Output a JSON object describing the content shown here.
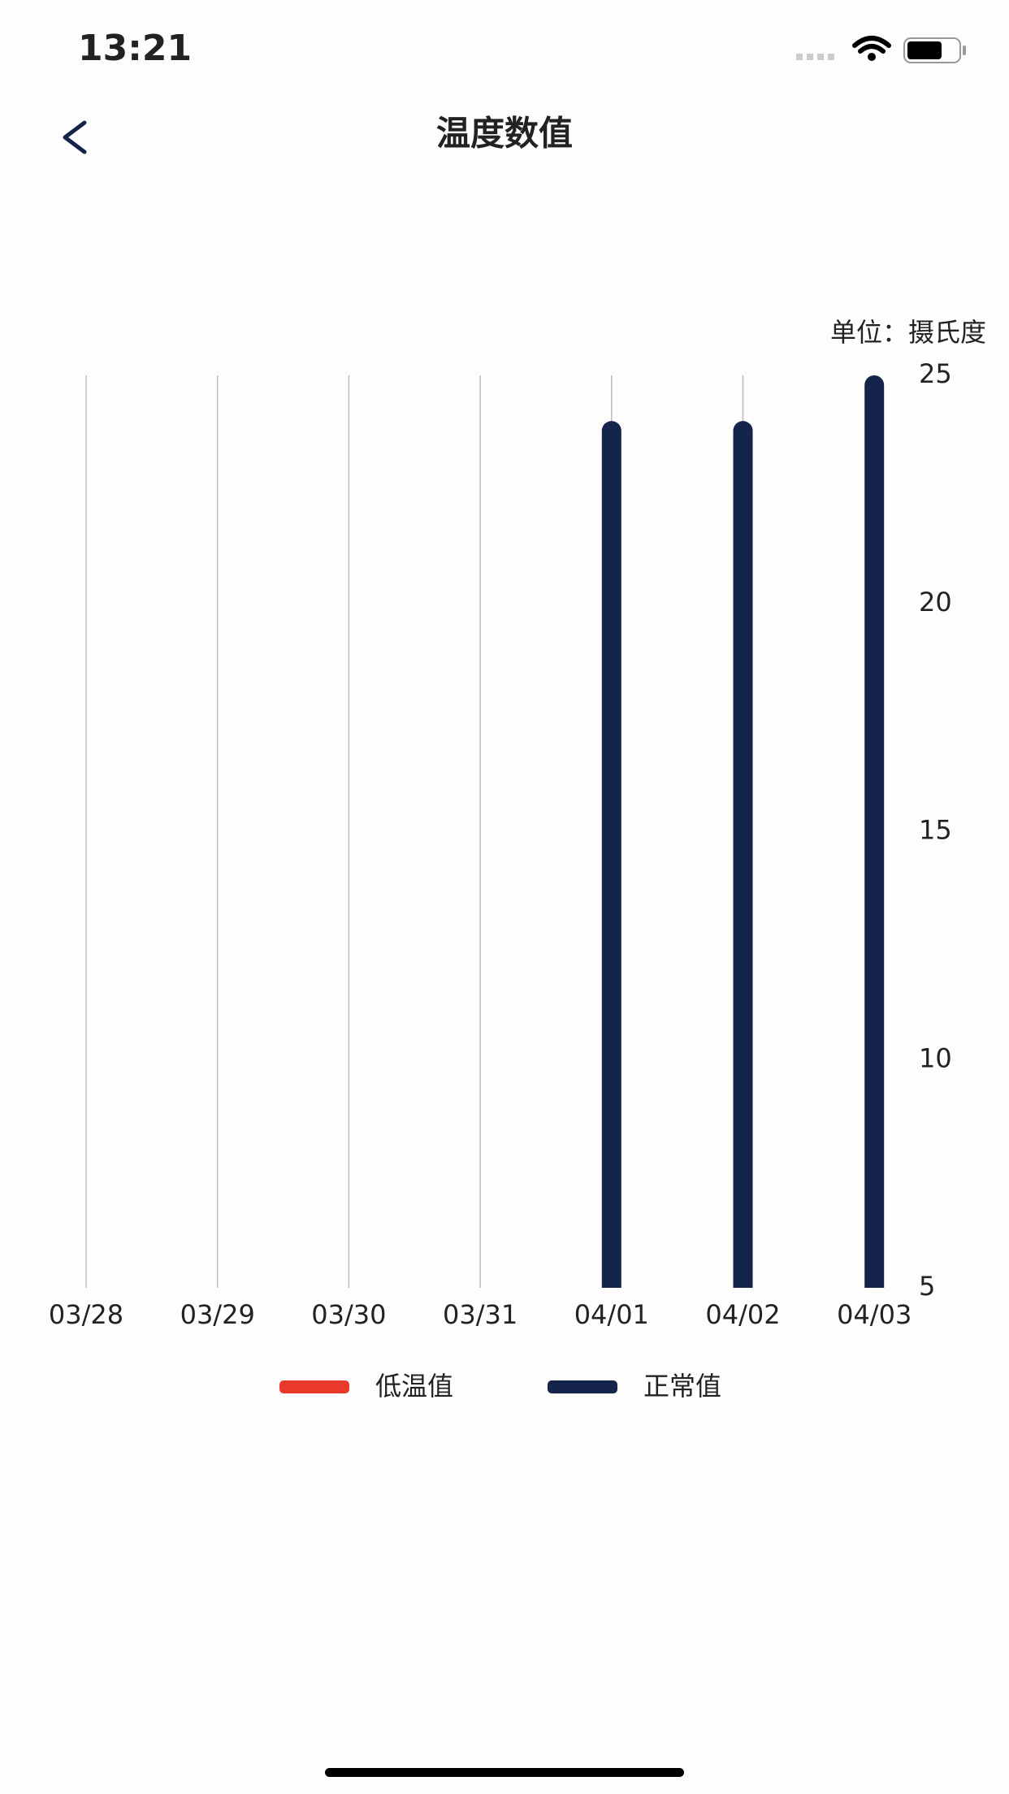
{
  "status_bar": {
    "time": "13:21"
  },
  "header": {
    "title": "温度数值"
  },
  "chart_data": {
    "type": "bar",
    "y_label": "单位：摄氏度",
    "categories": [
      "03/28",
      "03/29",
      "03/30",
      "03/31",
      "04/01",
      "04/02",
      "04/03"
    ],
    "series": [
      {
        "name": "低温值",
        "color": "#e8392b",
        "values": [
          null,
          null,
          null,
          null,
          null,
          null,
          null
        ]
      },
      {
        "name": "正常值",
        "color": "#14244b",
        "values": [
          null,
          null,
          null,
          null,
          24,
          24,
          25
        ]
      }
    ],
    "ylim": [
      5,
      25
    ],
    "yticks": [
      5,
      10,
      15,
      20,
      25
    ],
    "y_axis_side": "right",
    "grid": "vertical"
  }
}
